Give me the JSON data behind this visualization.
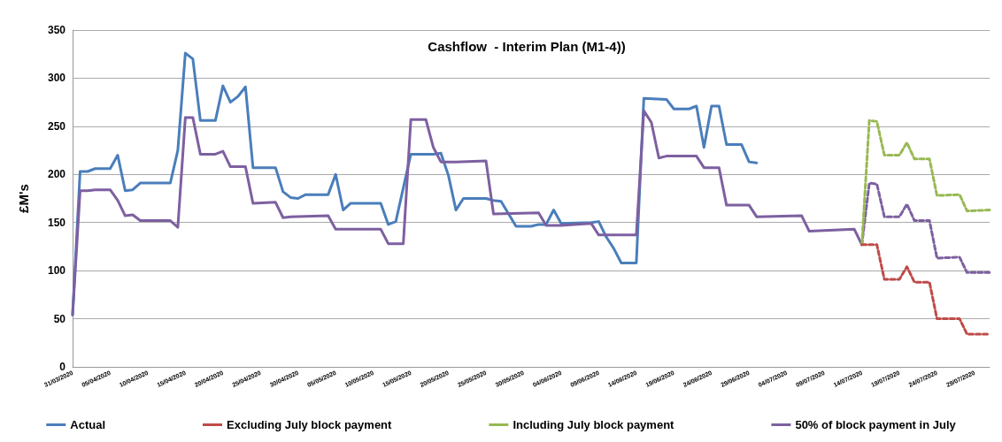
{
  "chart_data": {
    "type": "line",
    "title": "Cashflow  - Interim Plan (M1-4))",
    "ylabel": "£M's",
    "xlim": [
      "2020-03-31",
      "2020-07-31"
    ],
    "xticks": [
      {
        "value": "2020-03-31",
        "label": "31/03/2020"
      },
      {
        "value": "2020-04-05",
        "label": "05/04/2020"
      },
      {
        "value": "2020-04-10",
        "label": "10/04/2020"
      },
      {
        "value": "2020-04-15",
        "label": "15/04/2020"
      },
      {
        "value": "2020-04-20",
        "label": "20/04/2020"
      },
      {
        "value": "2020-04-25",
        "label": "25/04/2020"
      },
      {
        "value": "2020-04-30",
        "label": "30/04/2020"
      },
      {
        "value": "2020-05-05",
        "label": "05/05/2020"
      },
      {
        "value": "2020-05-10",
        "label": "10/05/2020"
      },
      {
        "value": "2020-05-15",
        "label": "15/05/2020"
      },
      {
        "value": "2020-05-20",
        "label": "20/05/2020"
      },
      {
        "value": "2020-05-25",
        "label": "25/05/2020"
      },
      {
        "value": "2020-05-30",
        "label": "30/05/2020"
      },
      {
        "value": "2020-06-04",
        "label": "04/06/2020"
      },
      {
        "value": "2020-06-09",
        "label": "09/06/2020"
      },
      {
        "value": "2020-06-14",
        "label": "14/06/2020"
      },
      {
        "value": "2020-06-19",
        "label": "19/06/2020"
      },
      {
        "value": "2020-06-24",
        "label": "24/06/2020"
      },
      {
        "value": "2020-06-29",
        "label": "29/06/2020"
      },
      {
        "value": "2020-07-04",
        "label": "04/07/2020"
      },
      {
        "value": "2020-07-09",
        "label": "09/07/2020"
      },
      {
        "value": "2020-07-14",
        "label": "14/07/2020"
      },
      {
        "value": "2020-07-19",
        "label": "19/07/2020"
      },
      {
        "value": "2020-07-24",
        "label": "24/07/2020"
      },
      {
        "value": "2020-07-29",
        "label": "29/07/2020"
      }
    ],
    "ylim": [
      0,
      350
    ],
    "yticks": [
      0,
      50,
      100,
      150,
      200,
      250,
      300,
      350
    ],
    "grid": "y",
    "legend": "bottom",
    "marker": "none",
    "series": [
      {
        "name": "Actual",
        "color": "#4a7ebb",
        "x": [
          "2020-03-31",
          "2020-04-01",
          "2020-04-02",
          "2020-04-03",
          "2020-04-05",
          "2020-04-06",
          "2020-04-07",
          "2020-04-08",
          "2020-04-09",
          "2020-04-13",
          "2020-04-14",
          "2020-04-15",
          "2020-04-16",
          "2020-04-17",
          "2020-04-19",
          "2020-04-20",
          "2020-04-21",
          "2020-04-22",
          "2020-04-23",
          "2020-04-24",
          "2020-04-27",
          "2020-04-28",
          "2020-04-29",
          "2020-04-30",
          "2020-05-01",
          "2020-05-04",
          "2020-05-05",
          "2020-05-06",
          "2020-05-07",
          "2020-05-11",
          "2020-05-12",
          "2020-05-13",
          "2020-05-15",
          "2020-05-18",
          "2020-05-19",
          "2020-05-20",
          "2020-05-21",
          "2020-05-22",
          "2020-05-25",
          "2020-05-26",
          "2020-05-27",
          "2020-05-29",
          "2020-05-31",
          "2020-06-01",
          "2020-06-02",
          "2020-06-03",
          "2020-06-04",
          "2020-06-08",
          "2020-06-09",
          "2020-06-10",
          "2020-06-11",
          "2020-06-12",
          "2020-06-14",
          "2020-06-15",
          "2020-06-18",
          "2020-06-19",
          "2020-06-21",
          "2020-06-22",
          "2020-06-23",
          "2020-06-24",
          "2020-06-25",
          "2020-06-26",
          "2020-06-28",
          "2020-06-29",
          "2020-06-30"
        ],
        "values": [
          54,
          203,
          203,
          206,
          206,
          220,
          183,
          184,
          191,
          191,
          225,
          326,
          320,
          256,
          256,
          292,
          275,
          281,
          291,
          207,
          207,
          182,
          176,
          175,
          179,
          179,
          200,
          163,
          170,
          170,
          148,
          151,
          221,
          221,
          222,
          199,
          163,
          175,
          175,
          173,
          172,
          146,
          146,
          148,
          148,
          163,
          149,
          150,
          151,
          135,
          123,
          108,
          108,
          279,
          278,
          268,
          268,
          271,
          228,
          271,
          271,
          231,
          231,
          213,
          212
        ]
      },
      {
        "name": "Excluding July block payment",
        "color": "#be4b48",
        "line_style": "dashed",
        "x": [
          "2020-07-14",
          "2020-07-16",
          "2020-07-17",
          "2020-07-19",
          "2020-07-20",
          "2020-07-21",
          "2020-07-23",
          "2020-07-24",
          "2020-07-27",
          "2020-07-28",
          "2020-07-31"
        ],
        "values": [
          127,
          127,
          91,
          91,
          104,
          88,
          88,
          50,
          50,
          34,
          34
        ]
      },
      {
        "name": "Including July block payment",
        "color": "#98b954",
        "line_style": "dashed",
        "x": [
          "2020-07-14",
          "2020-07-15",
          "2020-07-16",
          "2020-07-17",
          "2020-07-19",
          "2020-07-20",
          "2020-07-21",
          "2020-07-23",
          "2020-07-24",
          "2020-07-27",
          "2020-07-28",
          "2020-07-31"
        ],
        "values": [
          127,
          256,
          255,
          220,
          220,
          233,
          216,
          216,
          178,
          179,
          162,
          163
        ]
      },
      {
        "name": "50% of block payment in July",
        "color": "#7d60a0",
        "line_style": "dashed",
        "x": [
          "2020-07-14",
          "2020-07-15",
          "2020-07-16",
          "2020-07-17",
          "2020-07-19",
          "2020-07-20",
          "2020-07-21",
          "2020-07-23",
          "2020-07-24",
          "2020-07-27",
          "2020-07-28",
          "2020-07-31"
        ],
        "values": [
          127,
          191,
          190,
          156,
          156,
          169,
          152,
          152,
          113,
          114,
          98,
          98
        ]
      },
      {
        "color": "#7d60a0",
        "line_style": "solid",
        "x": [
          "2020-03-31",
          "2020-04-01",
          "2020-04-02",
          "2020-04-03",
          "2020-04-05",
          "2020-04-06",
          "2020-04-07",
          "2020-04-08",
          "2020-04-09",
          "2020-04-13",
          "2020-04-14",
          "2020-04-15",
          "2020-04-16",
          "2020-04-17",
          "2020-04-19",
          "2020-04-20",
          "2020-04-21",
          "2020-04-23",
          "2020-04-24",
          "2020-04-27",
          "2020-04-28",
          "2020-04-29",
          "2020-05-04",
          "2020-05-05",
          "2020-05-11",
          "2020-05-12",
          "2020-05-14",
          "2020-05-15",
          "2020-05-17",
          "2020-05-18",
          "2020-05-19",
          "2020-05-21",
          "2020-05-25",
          "2020-05-26",
          "2020-06-01",
          "2020-06-02",
          "2020-06-04",
          "2020-06-08",
          "2020-06-09",
          "2020-06-10",
          "2020-06-12",
          "2020-06-14",
          "2020-06-15",
          "2020-06-16",
          "2020-06-17",
          "2020-06-18",
          "2020-06-22",
          "2020-06-23",
          "2020-06-25",
          "2020-06-26",
          "2020-06-29",
          "2020-06-30",
          "2020-07-06",
          "2020-07-07",
          "2020-07-13",
          "2020-07-14"
        ],
        "values": [
          54,
          183,
          183,
          184,
          184,
          173,
          157,
          158,
          152,
          152,
          145,
          259,
          259,
          221,
          221,
          224,
          208,
          208,
          170,
          171,
          155,
          156,
          157,
          143,
          143,
          128,
          128,
          257,
          257,
          228,
          213,
          213,
          214,
          159,
          160,
          147,
          147,
          149,
          137,
          137,
          137,
          137,
          266,
          254,
          217,
          219,
          219,
          207,
          207,
          168,
          168,
          156,
          157,
          141,
          143,
          127
        ]
      }
    ]
  }
}
